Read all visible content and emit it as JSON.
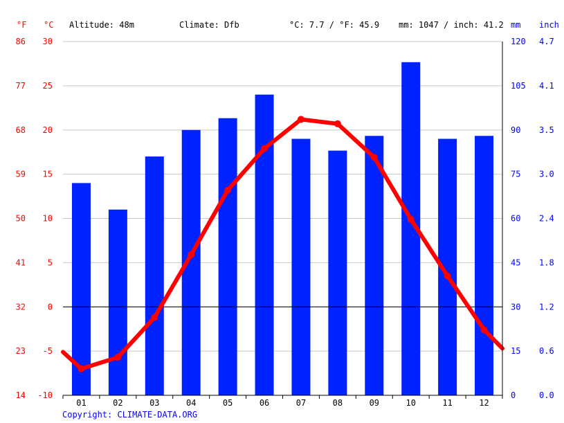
{
  "header": {
    "unit_f": "°F",
    "unit_c": "°C",
    "altitude": "Altitude: 48m",
    "climate": "Climate: Dfb",
    "avg_temp": "°C: 7.7 / °F: 45.9",
    "precip": "mm: 1047 / inch: 41.2",
    "unit_mm": "mm",
    "unit_inch": "inch"
  },
  "copyright": "Copyright: CLIMATE-DATA.ORG",
  "colors": {
    "bar": "#0022ff",
    "line": "#ff0000",
    "temp_axis": "#ff0000",
    "precip_axis": "#0000ff",
    "grid": "#c8c8c8"
  },
  "chart_data": {
    "type": "bar",
    "categories": [
      "01",
      "02",
      "03",
      "04",
      "05",
      "06",
      "07",
      "08",
      "09",
      "10",
      "11",
      "12"
    ],
    "series": [
      {
        "type": "bar",
        "axis": "right",
        "unit": "mm",
        "values": [
          72,
          63,
          81,
          90,
          94,
          102,
          87,
          83,
          88,
          113,
          87,
          88
        ]
      },
      {
        "type": "line",
        "axis": "left",
        "unit": "°C",
        "values": [
          -7.0,
          -5.7,
          -1.2,
          5.9,
          13.2,
          17.9,
          21.2,
          20.7,
          16.9,
          9.9,
          3.5,
          -2.6
        ]
      }
    ],
    "line_edge_values": [
      -5.1,
      -4.7
    ],
    "y_left": {
      "unit": "°C",
      "ylim": [
        -10,
        30
      ],
      "ticks": [
        "30",
        "25",
        "20",
        "15",
        "10",
        "5",
        "0",
        "-5",
        "-10"
      ]
    },
    "y_left_f": {
      "unit": "°F",
      "ticks": [
        "86",
        "77",
        "68",
        "59",
        "50",
        "41",
        "32",
        "23",
        "14"
      ]
    },
    "y_right": {
      "unit": "mm",
      "ylim": [
        0,
        120
      ],
      "ticks": [
        "120",
        "105",
        "90",
        "75",
        "60",
        "45",
        "30",
        "15",
        "0"
      ]
    },
    "y_right_inch": {
      "unit": "inch",
      "ticks": [
        "4.7",
        "4.1",
        "3.5",
        "3.0",
        "2.4",
        "1.8",
        "1.2",
        "0.6",
        "0.0"
      ]
    },
    "grid": true
  }
}
